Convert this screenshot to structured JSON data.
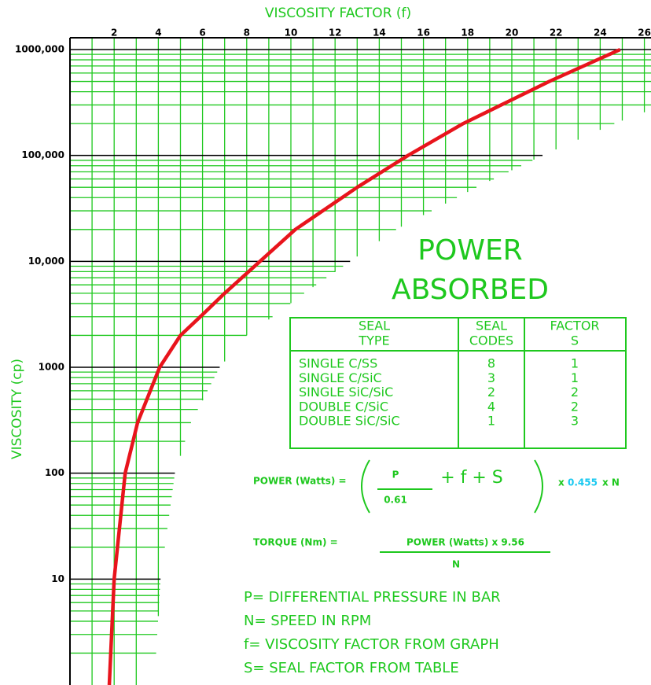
{
  "chart_data": {
    "type": "line",
    "title": "VISCOSITY FACTOR  (f)",
    "y_label": "VISCOSITY (cp)",
    "log_y": true,
    "grid": true,
    "xlim": [
      0,
      26.3
    ],
    "ylim": [
      1,
      1000000
    ],
    "xticks": [
      2,
      4,
      6,
      8,
      10,
      12,
      14,
      16,
      18,
      20,
      22,
      24,
      26
    ],
    "yticks": [
      10,
      100,
      1000,
      {
        "value": 10000,
        "label": "10,000"
      },
      {
        "value": 100000,
        "label": "100,000"
      },
      {
        "value": 1000000,
        "label": "1000,000"
      }
    ],
    "series": [
      {
        "color": "#e8141c",
        "x": [
          1.78,
          2.0,
          2.5,
          3.06,
          4.06,
          5.0,
          5.9,
          7.0,
          8.6,
          10.2,
          13.0,
          15.3,
          17.8,
          21.7,
          24.9
        ],
        "values": [
          1,
          10,
          100,
          300,
          1000,
          2000,
          3000,
          5000,
          10000,
          20000,
          50000,
          100000,
          200000,
          500000,
          1000000
        ]
      }
    ]
  },
  "panel": {
    "heading": [
      "POWER",
      "ABSORBED"
    ],
    "table": {
      "header": [
        [
          "SEAL",
          "TYPE"
        ],
        [
          "SEAL",
          "CODES"
        ],
        [
          "FACTOR",
          "S"
        ]
      ],
      "rows": [
        [
          "SINGLE C/SS",
          "8",
          "1"
        ],
        [
          "SINGLE C/SiC",
          "3",
          "1"
        ],
        [
          "SINGLE SiC/SiC",
          "2",
          "2"
        ],
        [
          "DOUBLE C/SiC",
          "4",
          "2"
        ],
        [
          "DOUBLE SiC/SiC",
          "1",
          "3"
        ]
      ]
    },
    "power": {
      "lhs": "POWER (Watts) =",
      "num": "P",
      "den": "0.61",
      "mid": "+  f  +  S",
      "times1": "x",
      "const": "0.455",
      "times2": "x N"
    },
    "torque": {
      "lhs": "TORQUE (Nm) =",
      "num": "POWER (Watts)   x   9.56",
      "den": "N"
    },
    "notes": [
      "P= DIFFERENTIAL PRESSURE IN BAR",
      "N= SPEED IN RPM",
      "f= VISCOSITY FACTOR FROM GRAPH",
      "S= SEAL FACTOR FROM TABLE"
    ]
  }
}
